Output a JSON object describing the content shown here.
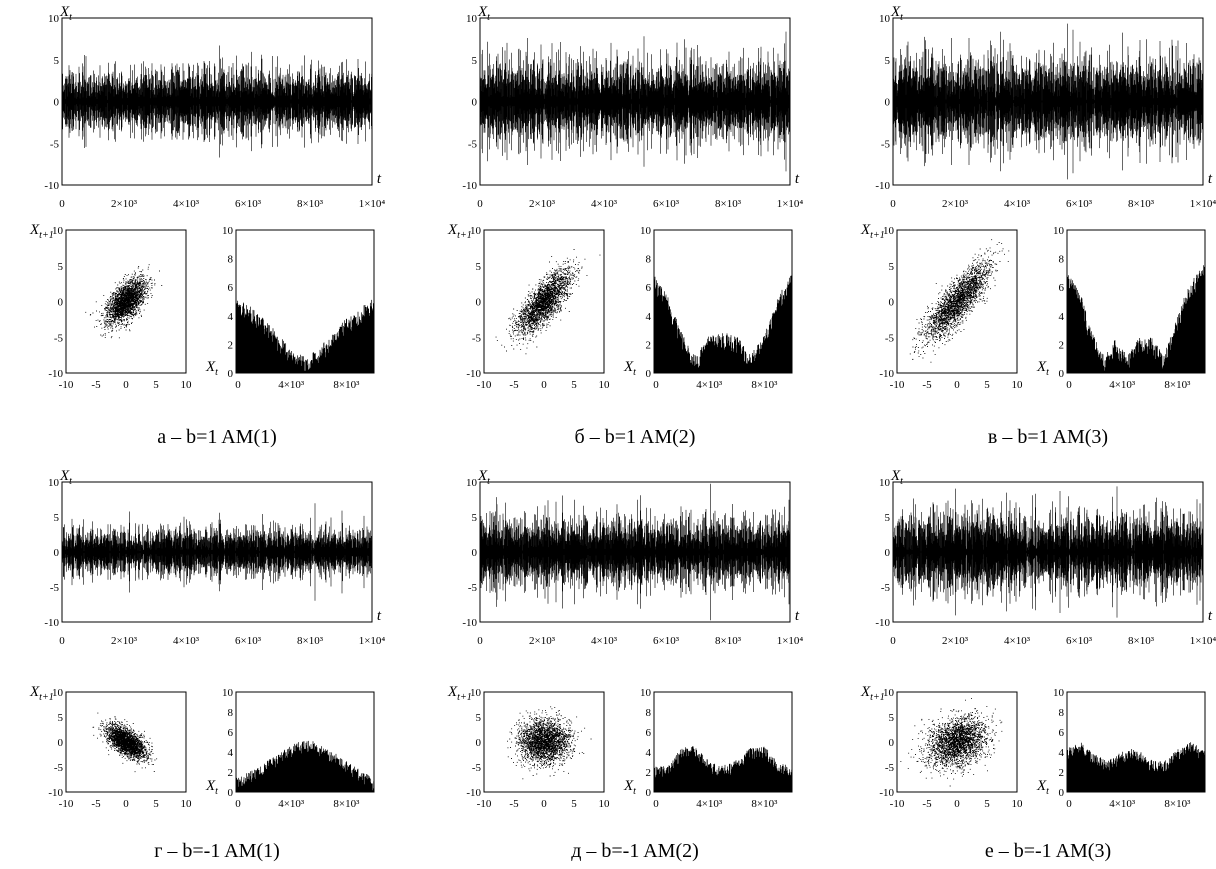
{
  "figures": [
    {
      "caption": "а – b=1 AM(1)",
      "variant": "b1_am1"
    },
    {
      "caption": "б – b=1 AM(2)",
      "variant": "b1_am2"
    },
    {
      "caption": "в – b=1 AM(3)",
      "variant": "b1_am3"
    },
    {
      "caption": "г – b=-1 AM(1)",
      "variant": "bm1_am1"
    },
    {
      "caption": "д – b=-1 AM(2)",
      "variant": "bm1_am2"
    },
    {
      "caption": "е – b=-1 AM(3)",
      "variant": "bm1_am3"
    }
  ],
  "labels": {
    "series_y": "X",
    "series_y_sub": "t",
    "series_x": "t",
    "scatter_y": "X",
    "scatter_y_sub": "t+1",
    "scatter_x": "X",
    "scatter_x_sub": "t"
  },
  "chart_data": [
    {
      "type": "line",
      "role": "time-series",
      "xlim": [
        0,
        10000
      ],
      "ylim": [
        -10,
        10
      ],
      "x_ticks": [
        "0",
        "2×10³",
        "4×10³",
        "6×10³",
        "8×10³",
        "1×10⁴"
      ],
      "y_ticks": [
        "10",
        "5",
        "0",
        "-5",
        "-10"
      ],
      "amplitude_per_panel": [
        3.0,
        3.8,
        4.2,
        2.8,
        3.8,
        4.2
      ]
    },
    {
      "type": "scatter",
      "role": "phase-portrait X(t+1) vs X(t)",
      "xlim": [
        -10,
        10
      ],
      "ylim": [
        -10,
        10
      ],
      "x_ticks": [
        "-10",
        "-5",
        "0",
        "5",
        "10"
      ],
      "y_ticks": [
        "10",
        "5",
        "0",
        "-5",
        "-10"
      ],
      "correlation_per_panel": [
        0.6,
        0.75,
        0.82,
        -0.6,
        0.0,
        0.25
      ],
      "spread_per_panel": [
        1.6,
        2.2,
        2.6,
        1.6,
        2.1,
        2.4
      ]
    },
    {
      "type": "area",
      "role": "envelope",
      "xlim": [
        0,
        10000
      ],
      "ylim": [
        0,
        10
      ],
      "x_ticks": [
        "0",
        "4×10³",
        "8×10³"
      ],
      "y_ticks": [
        "10",
        "8",
        "6",
        "4",
        "2",
        "0"
      ],
      "envelopes": {
        "b1_am1": {
          "x": [
            0,
            1000,
            2500,
            4000,
            5200,
            6500,
            8000,
            10000
          ],
          "y": [
            4.4,
            3.9,
            2.5,
            0.8,
            0.3,
            1.4,
            3.0,
            4.4
          ]
        },
        "b1_am2": {
          "x": [
            0,
            1000,
            2000,
            3000,
            4000,
            5000,
            6000,
            7000,
            8000,
            9000,
            10000
          ],
          "y": [
            6.0,
            4.5,
            2.0,
            0.4,
            1.8,
            2.0,
            1.8,
            0.4,
            2.0,
            4.5,
            6.2
          ]
        },
        "b1_am3": {
          "x": [
            0,
            900,
            1800,
            2700,
            3500,
            4400,
            5200,
            6100,
            7000,
            7900,
            8800,
            10000
          ],
          "y": [
            6.3,
            5.0,
            2.0,
            0.4,
            1.6,
            0.4,
            1.6,
            1.8,
            0.4,
            3.0,
            5.2,
            7.0
          ]
        },
        "bm1_am1": {
          "x": [
            0,
            1500,
            3000,
            4500,
            5500,
            7000,
            8500,
            10000
          ],
          "y": [
            0.6,
            1.5,
            3.0,
            4.2,
            4.3,
            3.2,
            1.8,
            0.5
          ]
        },
        "bm1_am2": {
          "x": [
            0,
            1000,
            2000,
            3000,
            4000,
            5000,
            6000,
            7000,
            8000,
            9000,
            10000
          ],
          "y": [
            1.7,
            1.8,
            3.6,
            3.8,
            2.2,
            1.8,
            2.4,
            3.6,
            3.8,
            2.2,
            1.6
          ]
        },
        "bm1_am3": {
          "x": [
            0,
            1000,
            2000,
            3000,
            4000,
            5000,
            6000,
            7000,
            8000,
            9000,
            10000
          ],
          "y": [
            3.5,
            4.2,
            3.0,
            2.3,
            3.2,
            3.6,
            2.4,
            2.2,
            3.5,
            4.2,
            3.2
          ]
        }
      }
    }
  ]
}
